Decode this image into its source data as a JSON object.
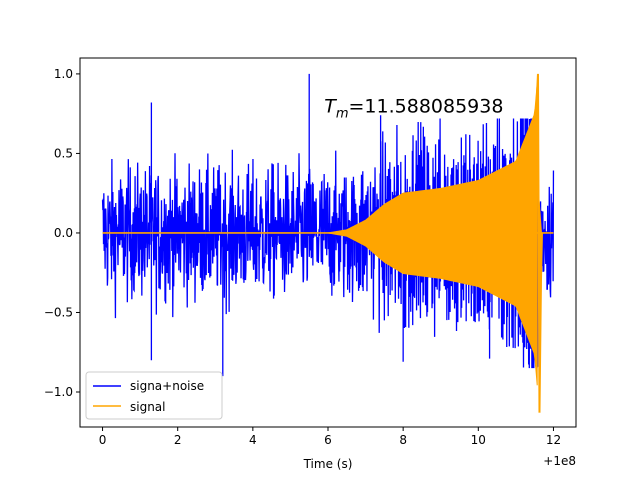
{
  "chart_data": {
    "type": "line",
    "title": "",
    "xlabel": "Time (s)",
    "ylabel": "",
    "x_offset_label": "+1e8",
    "xlim": [
      -0.6,
      12.6
    ],
    "ylim": [
      -1.22,
      1.1
    ],
    "xticks": [
      0,
      2,
      4,
      6,
      8,
      10,
      12
    ],
    "xtick_labels": [
      "0",
      "2",
      "4",
      "6",
      "8",
      "10",
      "12"
    ],
    "yticks": [
      -1.0,
      -0.5,
      0.0,
      0.5,
      1.0
    ],
    "ytick_labels": [
      "−1.0",
      "−0.5",
      "0.0",
      "0.5",
      "1.0"
    ],
    "grid": false,
    "legend_position": "lower-left",
    "annotation": {
      "prefix": "T",
      "subscript": "m",
      "value_text": "=11.588085938",
      "x": 5.9,
      "y": 0.8
    },
    "series": [
      {
        "name": "signa+noise",
        "color": "#0000ff",
        "t_start": 0.0,
        "t_end": 12.0,
        "noise_envelope": 0.37,
        "spikes": [
          {
            "x": 5.5,
            "y": 1.0
          },
          {
            "x": 3.2,
            "y": -0.9
          },
          {
            "x": 1.3,
            "y": -0.8
          },
          {
            "x": 1.3,
            "y": 0.82
          },
          {
            "x": 8.0,
            "y": -0.81
          },
          {
            "x": 10.3,
            "y": -0.79
          },
          {
            "x": 7.4,
            "y": 0.74
          }
        ]
      },
      {
        "name": "signal",
        "color": "#ffa500",
        "t_start": 0.0,
        "t_end": 12.0,
        "merger_time": 11.588085938,
        "envelope_points": [
          {
            "x": 6.0,
            "y": 0.0
          },
          {
            "x": 6.5,
            "y": 0.02
          },
          {
            "x": 7.0,
            "y": 0.08
          },
          {
            "x": 7.5,
            "y": 0.18
          },
          {
            "x": 8.0,
            "y": 0.25
          },
          {
            "x": 9.0,
            "y": 0.28
          },
          {
            "x": 10.0,
            "y": 0.33
          },
          {
            "x": 11.0,
            "y": 0.45
          },
          {
            "x": 11.5,
            "y": 0.75
          },
          {
            "x": 11.59,
            "y": 1.0
          }
        ],
        "peak_max": 1.0,
        "peak_min": -1.13
      }
    ]
  }
}
